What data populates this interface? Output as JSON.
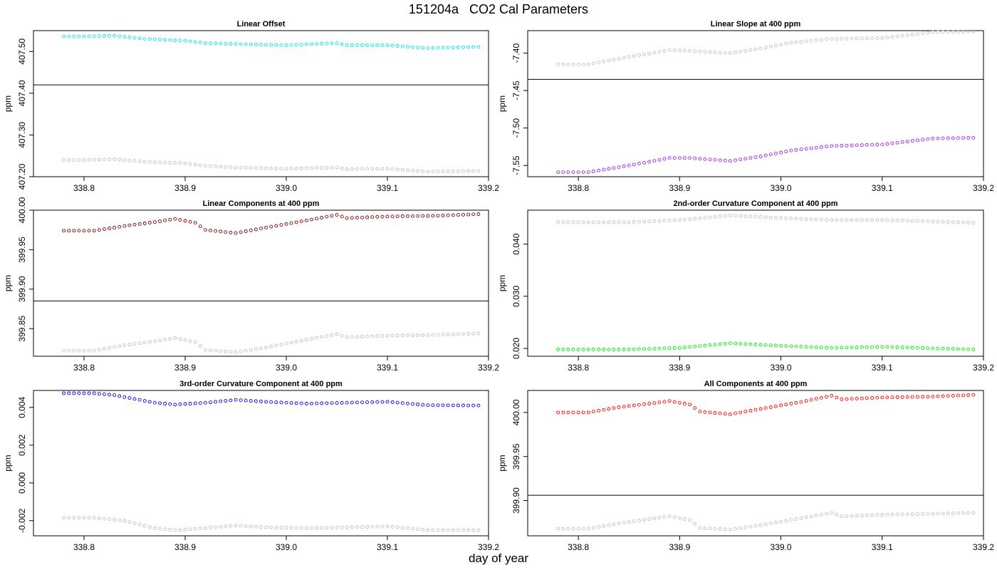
{
  "title": "151204a   CO2 Cal Parameters",
  "xlabel": "day of year",
  "chart_data": [
    {
      "type": "scatter",
      "title": "Linear Offset",
      "ylabel": "ppm",
      "xlim": [
        338.75,
        339.2
      ],
      "ylim": [
        407.2,
        407.55
      ],
      "xticks": [
        "338.8",
        "338.9",
        "339.0",
        "339.1",
        "339.2"
      ],
      "yticks": [
        "407.20",
        "407.30",
        "407.40",
        "407.50"
      ],
      "hline": 407.42,
      "series": [
        {
          "color": "#00e5ee",
          "anchors": [
            [
              338.78,
              407.536
            ],
            [
              338.8,
              407.536
            ],
            [
              338.83,
              407.538
            ],
            [
              338.86,
              407.53
            ],
            [
              338.9,
              407.526
            ],
            [
              338.92,
              407.52
            ],
            [
              338.95,
              407.518
            ],
            [
              339.0,
              407.515
            ],
            [
              339.05,
              407.52
            ],
            [
              339.06,
              407.515
            ],
            [
              339.1,
              407.515
            ],
            [
              339.14,
              407.508
            ],
            [
              339.19,
              407.511
            ]
          ]
        },
        {
          "color": "#c0c0c0",
          "anchors": [
            [
              338.78,
              407.24
            ],
            [
              338.8,
              407.24
            ],
            [
              338.83,
              407.242
            ],
            [
              338.86,
              407.236
            ],
            [
              338.9,
              407.232
            ],
            [
              338.92,
              407.226
            ],
            [
              338.95,
              407.222
            ],
            [
              339.0,
              407.219
            ],
            [
              339.05,
              407.222
            ],
            [
              339.06,
              407.218
            ],
            [
              339.1,
              407.219
            ],
            [
              339.14,
              407.212
            ],
            [
              339.19,
              407.214
            ]
          ]
        }
      ]
    },
    {
      "type": "scatter",
      "title": "Linear Slope at 400 ppm",
      "ylabel": "ppm",
      "xlim": [
        338.75,
        339.2
      ],
      "ylim": [
        -7.565,
        -7.37
      ],
      "xticks": [
        "338.8",
        "338.9",
        "339.0",
        "339.1",
        "339.2"
      ],
      "yticks": [
        "-7.55",
        "-7.50",
        "-7.45",
        "-7.40"
      ],
      "hline": -7.435,
      "series": [
        {
          "color": "#a020f0",
          "anchors": [
            [
              338.78,
              -7.559
            ],
            [
              338.81,
              -7.559
            ],
            [
              338.85,
              -7.55
            ],
            [
              338.89,
              -7.54
            ],
            [
              338.91,
              -7.54
            ],
            [
              338.95,
              -7.544
            ],
            [
              338.98,
              -7.538
            ],
            [
              339.01,
              -7.53
            ],
            [
              339.05,
              -7.524
            ],
            [
              339.1,
              -7.522
            ],
            [
              339.15,
              -7.514
            ],
            [
              339.19,
              -7.513
            ]
          ]
        },
        {
          "color": "#c0c0c0",
          "anchors": [
            [
              338.78,
              -7.415
            ],
            [
              338.81,
              -7.415
            ],
            [
              338.85,
              -7.405
            ],
            [
              338.89,
              -7.396
            ],
            [
              338.91,
              -7.397
            ],
            [
              338.95,
              -7.4
            ],
            [
              338.98,
              -7.394
            ],
            [
              339.01,
              -7.386
            ],
            [
              339.05,
              -7.381
            ],
            [
              339.1,
              -7.38
            ],
            [
              339.15,
              -7.372
            ],
            [
              339.19,
              -7.371
            ]
          ]
        }
      ]
    },
    {
      "type": "scatter",
      "title": "Linear Components at 400 ppm",
      "ylabel": "ppm",
      "xlim": [
        338.75,
        339.2
      ],
      "ylim": [
        399.815,
        400.0
      ],
      "xticks": [
        "338.8",
        "338.9",
        "339.0",
        "339.1",
        "339.2"
      ],
      "yticks": [
        "399.85",
        "399.90",
        "399.95",
        "400.00"
      ],
      "hline": 399.885,
      "series": [
        {
          "color": "#8b0000",
          "anchors": [
            [
              338.78,
              399.974
            ],
            [
              338.81,
              399.974
            ],
            [
              338.84,
              399.98
            ],
            [
              338.87,
              399.985
            ],
            [
              338.89,
              399.989
            ],
            [
              338.91,
              399.984
            ],
            [
              338.92,
              399.975
            ],
            [
              338.95,
              399.971
            ],
            [
              338.98,
              399.978
            ],
            [
              339.02,
              399.987
            ],
            [
              339.05,
              399.994
            ],
            [
              339.06,
              399.99
            ],
            [
              339.1,
              399.992
            ],
            [
              339.15,
              399.993
            ],
            [
              339.19,
              399.995
            ]
          ]
        },
        {
          "color": "#c0c0c0",
          "anchors": [
            [
              338.78,
              399.822
            ],
            [
              338.81,
              399.822
            ],
            [
              338.84,
              399.829
            ],
            [
              338.87,
              399.834
            ],
            [
              338.89,
              399.838
            ],
            [
              338.91,
              399.833
            ],
            [
              338.92,
              399.823
            ],
            [
              338.95,
              399.82
            ],
            [
              338.98,
              399.826
            ],
            [
              339.02,
              399.836
            ],
            [
              339.05,
              399.843
            ],
            [
              339.06,
              399.839
            ],
            [
              339.1,
              399.841
            ],
            [
              339.15,
              399.842
            ],
            [
              339.19,
              399.844
            ]
          ]
        }
      ]
    },
    {
      "type": "scatter",
      "title": "2nd-order Curvature Component at 400 ppm",
      "ylabel": "ppm",
      "xlim": [
        338.75,
        339.2
      ],
      "ylim": [
        0.0185,
        0.0465
      ],
      "xticks": [
        "338.8",
        "338.9",
        "339.0",
        "339.1",
        "339.2"
      ],
      "yticks": [
        "0.020",
        "0.030",
        "0.040"
      ],
      "hline": null,
      "series": [
        {
          "color": "#00ee00",
          "anchors": [
            [
              338.78,
              0.0198
            ],
            [
              338.85,
              0.0198
            ],
            [
              338.9,
              0.0201
            ],
            [
              338.95,
              0.021
            ],
            [
              339.0,
              0.0205
            ],
            [
              339.05,
              0.0201
            ],
            [
              339.1,
              0.0203
            ],
            [
              339.19,
              0.0198
            ]
          ]
        },
        {
          "color": "#c0c0c0",
          "anchors": [
            [
              338.78,
              0.0442
            ],
            [
              338.85,
              0.0442
            ],
            [
              338.9,
              0.0446
            ],
            [
              338.95,
              0.0455
            ],
            [
              339.0,
              0.045
            ],
            [
              339.05,
              0.0446
            ],
            [
              339.1,
              0.0446
            ],
            [
              339.19,
              0.0441
            ]
          ]
        }
      ]
    },
    {
      "type": "scatter",
      "title": "3rd-order Curvature Component at 400 ppm",
      "ylabel": "ppm",
      "xlim": [
        338.75,
        339.2
      ],
      "ylim": [
        -0.0028,
        0.0049
      ],
      "xticks": [
        "338.8",
        "338.9",
        "339.0",
        "339.1",
        "339.2"
      ],
      "yticks": [
        "-0.002",
        "0.000",
        "0.002",
        "0.004"
      ],
      "hline": null,
      "series": [
        {
          "color": "#0000ee",
          "anchors": [
            [
              338.78,
              0.00475
            ],
            [
              338.81,
              0.00475
            ],
            [
              338.83,
              0.00465
            ],
            [
              338.87,
              0.00425
            ],
            [
              338.89,
              0.00415
            ],
            [
              338.92,
              0.00425
            ],
            [
              338.95,
              0.0044
            ],
            [
              338.98,
              0.0043
            ],
            [
              339.02,
              0.0042
            ],
            [
              339.06,
              0.00425
            ],
            [
              339.1,
              0.0043
            ],
            [
              339.14,
              0.00412
            ],
            [
              339.19,
              0.0041
            ]
          ]
        },
        {
          "color": "#c0c0c0",
          "anchors": [
            [
              338.78,
              -0.00185
            ],
            [
              338.81,
              -0.00185
            ],
            [
              338.84,
              -0.002
            ],
            [
              338.87,
              -0.0024
            ],
            [
              338.89,
              -0.0025
            ],
            [
              338.92,
              -0.0024
            ],
            [
              338.95,
              -0.00225
            ],
            [
              338.98,
              -0.00235
            ],
            [
              339.02,
              -0.0024
            ],
            [
              339.06,
              -0.00235
            ],
            [
              339.1,
              -0.0023
            ],
            [
              339.14,
              -0.0025
            ],
            [
              339.19,
              -0.0025
            ]
          ]
        }
      ]
    },
    {
      "type": "scatter",
      "title": "All Components at 400 ppm",
      "ylabel": "ppm",
      "xlim": [
        338.75,
        339.2
      ],
      "ylim": [
        399.86,
        400.025
      ],
      "xticks": [
        "338.8",
        "338.9",
        "339.0",
        "339.1",
        "339.2"
      ],
      "yticks": [
        "399.90",
        "399.95",
        "400.00"
      ],
      "hline": 399.906,
      "series": [
        {
          "color": "#ff0000",
          "anchors": [
            [
              338.78,
              400.0
            ],
            [
              338.81,
              400.0
            ],
            [
              338.84,
              400.006
            ],
            [
              338.87,
              400.01
            ],
            [
              338.89,
              400.013
            ],
            [
              338.91,
              400.009
            ],
            [
              338.92,
              400.001
            ],
            [
              338.95,
              399.998
            ],
            [
              338.98,
              400.004
            ],
            [
              339.02,
              400.012
            ],
            [
              339.05,
              400.019
            ],
            [
              339.06,
              400.015
            ],
            [
              339.1,
              400.017
            ],
            [
              339.15,
              400.018
            ],
            [
              339.19,
              400.02
            ]
          ]
        },
        {
          "color": "#c0c0c0",
          "anchors": [
            [
              338.78,
              399.868
            ],
            [
              338.81,
              399.868
            ],
            [
              338.84,
              399.874
            ],
            [
              338.87,
              399.879
            ],
            [
              338.89,
              399.882
            ],
            [
              338.91,
              399.878
            ],
            [
              338.92,
              399.869
            ],
            [
              338.95,
              399.867
            ],
            [
              338.98,
              399.872
            ],
            [
              339.02,
              399.88
            ],
            [
              339.05,
              399.886
            ],
            [
              339.06,
              399.882
            ],
            [
              339.1,
              399.884
            ],
            [
              339.15,
              399.885
            ],
            [
              339.19,
              399.886
            ]
          ]
        }
      ]
    }
  ]
}
